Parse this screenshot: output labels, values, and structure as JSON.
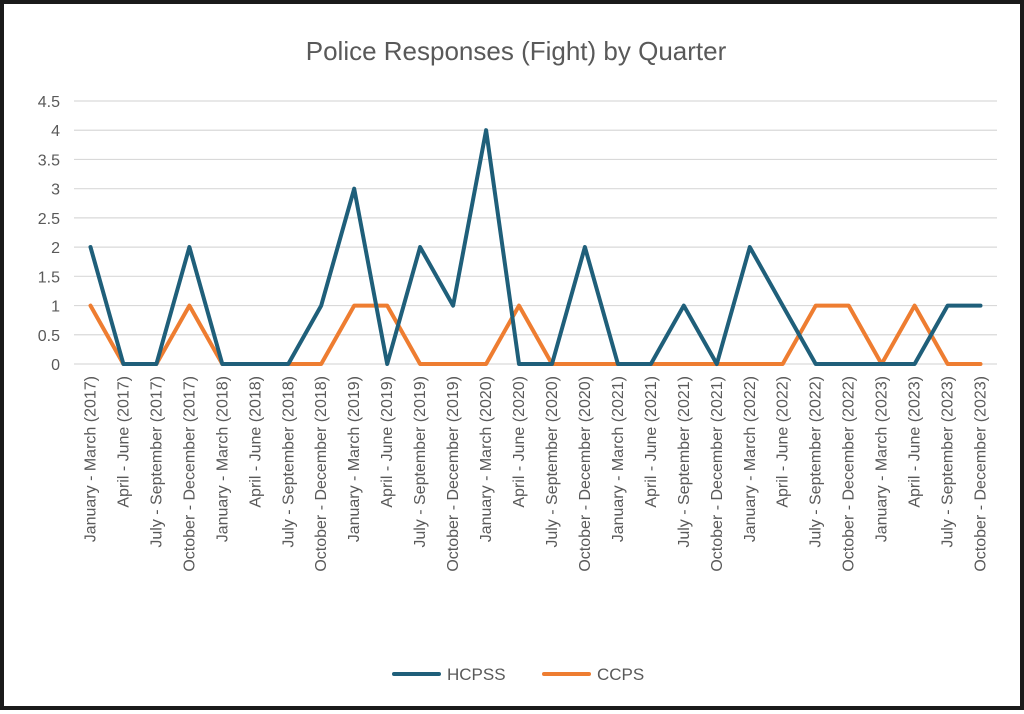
{
  "chart_data": {
    "type": "line",
    "title": "Police Responses (Fight) by Quarter",
    "xlabel": "",
    "ylabel": "",
    "ylim": [
      0,
      4.5
    ],
    "yticks": [
      "0",
      "0.5",
      "1",
      "1.5",
      "2",
      "2.5",
      "3",
      "3.5",
      "4",
      "4.5"
    ],
    "grid": true,
    "legend_position": "bottom",
    "categories": [
      "January - March (2017)",
      "April - June (2017)",
      "July - September (2017)",
      "October - December (2017)",
      "January - March (2018)",
      "April - June (2018)",
      "July - September (2018)",
      "October - December (2018)",
      "January - March (2019)",
      "April - June (2019)",
      "July - September (2019)",
      "October - December (2019)",
      "January - March (2020)",
      "April - June (2020)",
      "July - September (2020)",
      "October - December (2020)",
      "January - March (2021)",
      "April - June (2021)",
      "July - September (2021)",
      "October - December (2021)",
      "January - March (2022)",
      "April - June (2022)",
      "July - September (2022)",
      "October - December (2022)",
      "January - March (2023)",
      "April - June (2023)",
      "July - September (2023)",
      "October - December (2023)"
    ],
    "series": [
      {
        "name": "HCPSS",
        "color": "#1f5f7a",
        "values": [
          2,
          0,
          0,
          2,
          0,
          0,
          0,
          1,
          3,
          0,
          2,
          1,
          4,
          0,
          0,
          2,
          0,
          0,
          1,
          0,
          2,
          1,
          0,
          0,
          0,
          0,
          1,
          1
        ]
      },
      {
        "name": "CCPS",
        "color": "#ee7d31",
        "values": [
          1,
          0,
          0,
          1,
          0,
          0,
          0,
          0,
          1,
          1,
          0,
          0,
          0,
          1,
          0,
          0,
          0,
          0,
          0,
          0,
          0,
          0,
          1,
          1,
          0,
          1,
          0,
          0
        ]
      }
    ]
  }
}
